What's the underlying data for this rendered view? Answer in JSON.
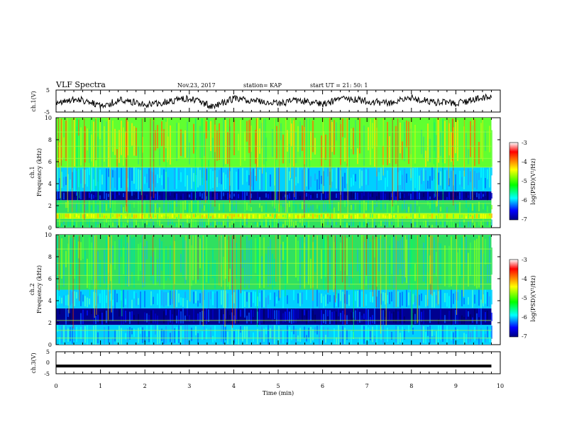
{
  "header": {
    "title": "VLF Spectra",
    "date": "Nov.23, 2017",
    "station": "station= KAP",
    "start": "start  UT =   21: 50: 1"
  },
  "chart_data": [
    {
      "type": "line",
      "panel": "ch1-waveform",
      "ylabel": "ch.1(V)",
      "ylim": [
        -5,
        5
      ],
      "yticks": [
        "5",
        "-5"
      ],
      "xlim": [
        0,
        10
      ],
      "x": [
        0,
        0.5,
        1,
        1.5,
        2,
        2.5,
        3,
        3.5,
        4,
        4.5,
        5,
        5.5,
        6,
        6.5,
        7,
        7.5,
        8,
        8.5,
        9,
        9.5,
        9.8
      ],
      "y": [
        -0.5,
        1.0,
        -2.0,
        0.5,
        -1.5,
        -0.5,
        1.5,
        -2.5,
        1.0,
        0.0,
        -1.0,
        0.5,
        -1.5,
        1.5,
        0.0,
        -1.0,
        1.5,
        -0.5,
        -1.0,
        1.0,
        2.0
      ]
    },
    {
      "type": "heatmap",
      "panel": "ch1-spectrogram",
      "ylabel": "ch.1",
      "ylabel2": "Frequency (kHz)",
      "ylim": [
        0,
        10
      ],
      "yticks": [
        "0",
        "2",
        "4",
        "6",
        "8",
        "10"
      ],
      "xlim": [
        0,
        10
      ],
      "data_xmax": 9.8,
      "bands_khz": [
        [
          0,
          0.8,
          "green"
        ],
        [
          0.8,
          1.3,
          "yellow-green"
        ],
        [
          1.3,
          2.5,
          "green"
        ],
        [
          2.5,
          3.3,
          "dark-blue"
        ],
        [
          3.3,
          5.5,
          "cyan"
        ],
        [
          5.5,
          10,
          "green-yellow"
        ]
      ],
      "colorbar": {
        "label": "log(PSD)(V²/Hz)",
        "range": [
          -7,
          -3
        ],
        "ticks": [
          "-3",
          "-4",
          "-5",
          "-6",
          "-7"
        ]
      }
    },
    {
      "type": "heatmap",
      "panel": "ch2-spectrogram",
      "ylabel": "ch.2",
      "ylabel2": "Frequency (kHz)",
      "ylim": [
        0,
        10
      ],
      "yticks": [
        "0",
        "2",
        "4",
        "6",
        "8",
        "10"
      ],
      "xlim": [
        0,
        10
      ],
      "data_xmax": 9.8,
      "bands_khz": [
        [
          0,
          1.8,
          "cyan"
        ],
        [
          1.8,
          3.3,
          "dark-blue"
        ],
        [
          3.3,
          5.0,
          "cyan"
        ],
        [
          5.0,
          10,
          "green"
        ]
      ],
      "colorbar": {
        "label": "log(PSD)(V²/Hz)",
        "range": [
          -7,
          -3
        ],
        "ticks": [
          "-3",
          "-4",
          "-5",
          "-6",
          "-7"
        ]
      }
    },
    {
      "type": "line",
      "panel": "ch3-waveform",
      "ylabel": "ch.3(V)",
      "ylim": [
        -5,
        5
      ],
      "yticks": [
        "5",
        "0",
        "-5"
      ],
      "xlim": [
        0,
        10
      ],
      "x": [
        0,
        9.8
      ],
      "y": [
        -1.5,
        -1.5
      ]
    }
  ],
  "xaxis": {
    "label": "Time (min)",
    "ticks": [
      "0",
      "1",
      "2",
      "3",
      "4",
      "5",
      "6",
      "7",
      "8",
      "9",
      "10"
    ]
  }
}
